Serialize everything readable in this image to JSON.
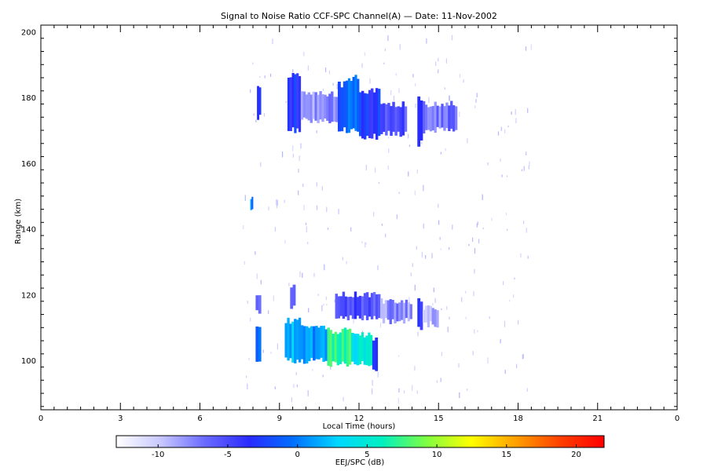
{
  "chart_data": {
    "type": "heatmap",
    "title": "Signal to Noise Ratio CCF-SPC Channel(A) — Date: 11-Nov-2002",
    "xlabel": "Local Time (hours)",
    "ylabel": "Range (km)",
    "xlim": [
      0,
      24
    ],
    "ylim": [
      85,
      202
    ],
    "x_ticks": [
      "0",
      "3",
      "6",
      "9",
      "12",
      "15",
      "18",
      "21",
      "0"
    ],
    "x_tick_values": [
      0,
      3,
      6,
      9,
      12,
      15,
      18,
      21,
      24
    ],
    "y_ticks": [
      "100",
      "120",
      "140",
      "160",
      "180",
      "200"
    ],
    "y_tick_values": [
      100,
      120,
      140,
      160,
      180,
      200
    ],
    "colorbar": {
      "label": "EEJ/SPC (dB)",
      "range": [
        -13,
        22
      ],
      "ticks": [
        "-10",
        "-5",
        "0",
        "5",
        "10",
        "15",
        "20"
      ],
      "tick_values": [
        -10,
        -5,
        0,
        5,
        10,
        15,
        20
      ],
      "colors": [
        "#ffffff",
        "#c8c8ff",
        "#6a6aff",
        "#2a2aff",
        "#0070ff",
        "#00d8ff",
        "#00f0c0",
        "#80ff40",
        "#ffff00",
        "#ffa000",
        "#ff4000",
        "#ff0000"
      ]
    },
    "regions": [
      {
        "x": [
          8.15,
          8.3
        ],
        "y": [
          174,
          184
        ],
        "db": -4
      },
      {
        "x": [
          9.3,
          9.8
        ],
        "y": [
          170,
          187
        ],
        "db": -3
      },
      {
        "x": [
          9.8,
          11.2
        ],
        "y": [
          173,
          181
        ],
        "db": -8
      },
      {
        "x": [
          11.2,
          11.5
        ],
        "y": [
          170,
          184
        ],
        "db": -2
      },
      {
        "x": [
          11.5,
          12.0
        ],
        "y": [
          170,
          186
        ],
        "db": 0
      },
      {
        "x": [
          12.0,
          12.8
        ],
        "y": [
          168,
          182
        ],
        "db": -3
      },
      {
        "x": [
          12.8,
          13.8
        ],
        "y": [
          169,
          178
        ],
        "db": -5
      },
      {
        "x": [
          14.2,
          14.4
        ],
        "y": [
          166,
          180
        ],
        "db": -3
      },
      {
        "x": [
          14.4,
          15.7
        ],
        "y": [
          170,
          178
        ],
        "db": -7
      },
      {
        "x": [
          8.1,
          8.3
        ],
        "y": [
          100,
          110
        ],
        "db": 0
      },
      {
        "x": [
          8.1,
          8.3
        ],
        "y": [
          115,
          120
        ],
        "db": -6
      },
      {
        "x": [
          9.2,
          9.8
        ],
        "y": [
          100,
          112
        ],
        "db": 2
      },
      {
        "x": [
          9.8,
          10.8
        ],
        "y": [
          100,
          110
        ],
        "db": 1
      },
      {
        "x": [
          10.8,
          11.7
        ],
        "y": [
          99,
          109
        ],
        "db": 7
      },
      {
        "x": [
          11.7,
          12.0
        ],
        "y": [
          99,
          108
        ],
        "db": 3
      },
      {
        "x": [
          12.0,
          12.5
        ],
        "y": [
          99,
          108
        ],
        "db": 5
      },
      {
        "x": [
          12.5,
          12.7
        ],
        "y": [
          97,
          106
        ],
        "db": -2
      },
      {
        "x": [
          11.1,
          12.8
        ],
        "y": [
          113,
          120
        ],
        "db": -5
      },
      {
        "x": [
          12.8,
          14.0
        ],
        "y": [
          112,
          118
        ],
        "db": -8
      },
      {
        "x": [
          14.2,
          14.4
        ],
        "y": [
          110,
          118
        ],
        "db": -4
      },
      {
        "x": [
          14.4,
          15.0
        ],
        "y": [
          111,
          116
        ],
        "db": -9
      },
      {
        "x": [
          9.4,
          9.6
        ],
        "y": [
          116,
          123
        ],
        "db": -5
      },
      {
        "x": [
          7.9,
          8.0
        ],
        "y": [
          146,
          150
        ],
        "db": 0
      }
    ]
  }
}
